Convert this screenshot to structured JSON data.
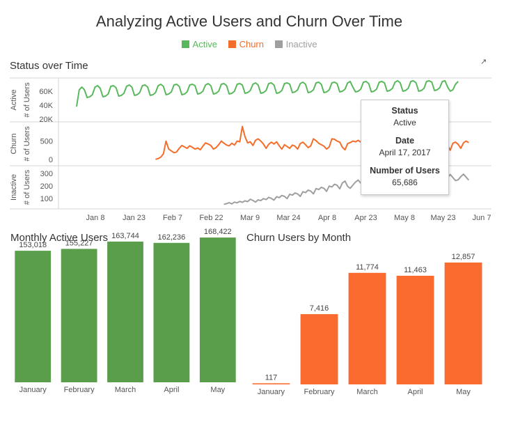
{
  "dashboard": {
    "title": "Analyzing Active Users and Churn Over Time",
    "legend": [
      {
        "label": "Active",
        "color": "#59b85c"
      },
      {
        "label": "Churn",
        "color": "#f46d2a"
      },
      {
        "label": "Inactive",
        "color": "#9da09e"
      }
    ],
    "popout_icon": "popout-icon"
  },
  "status_section": {
    "title": "Status over Time",
    "rows": [
      {
        "name": "Active",
        "axis_title": "# of Users",
        "ticks": [
          "60K",
          "40K",
          "20K"
        ]
      },
      {
        "name": "Churn",
        "axis_title": "# of Users",
        "ticks": [
          "500",
          "0"
        ]
      },
      {
        "name": "Inactive",
        "axis_title": "# of Users",
        "ticks": [
          "300",
          "200",
          "100"
        ]
      }
    ],
    "date_ticks": [
      "Jan 8",
      "Jan 23",
      "Feb 7",
      "Feb 22",
      "Mar 9",
      "Mar 24",
      "Apr 8",
      "Apr 23",
      "May 8",
      "May 23",
      "Jun 7"
    ]
  },
  "tooltip": {
    "status_label": "Status",
    "status_value": "Active",
    "date_label": "Date",
    "date_value": "April 17, 2017",
    "users_label": "Number of Users",
    "users_value": "65,686"
  },
  "monthly_active": {
    "title": "Monthly Active Users"
  },
  "churn_by_month": {
    "title": "Churn Users by Month"
  },
  "chart_data": [
    {
      "type": "line",
      "series_name": "Active",
      "start_date": "2017-01-01",
      "ylim": [
        20000,
        75000
      ],
      "values": [
        38000,
        62000,
        66000,
        62000,
        51000,
        52000,
        55000,
        66000,
        68000,
        64000,
        52000,
        53000,
        56000,
        67000,
        68000,
        65000,
        53000,
        54000,
        57000,
        67000,
        69000,
        66000,
        54000,
        55000,
        58000,
        68000,
        69000,
        66000,
        54000,
        55000,
        58000,
        68000,
        70000,
        67000,
        55000,
        56000,
        59000,
        69000,
        70000,
        67000,
        55000,
        56000,
        59000,
        69000,
        70000,
        68000,
        56000,
        57000,
        60000,
        69000,
        71000,
        68000,
        56000,
        57000,
        60000,
        70000,
        71000,
        68000,
        56000,
        57000,
        60000,
        70000,
        71000,
        69000,
        57000,
        58000,
        61000,
        70000,
        72000,
        69000,
        57000,
        58000,
        61000,
        71000,
        72000,
        69000,
        57000,
        58000,
        61000,
        71000,
        72000,
        70000,
        58000,
        59000,
        62000,
        71000,
        73000,
        70000,
        58000,
        59000,
        62000,
        72000,
        73000,
        70000,
        58000,
        59000,
        62000,
        72000,
        73000,
        71000,
        59000,
        60000,
        63000,
        72000,
        74000,
        65686,
        59000,
        60000,
        63000,
        73000,
        74000,
        71000,
        59000,
        60000,
        63000,
        73000,
        74000,
        72000,
        60000,
        61000,
        64000,
        73000,
        75000,
        72000,
        60000,
        61000,
        64000,
        74000,
        75000,
        72000,
        60000,
        61000,
        64000,
        74000,
        75000,
        73000,
        61000,
        62000,
        65000,
        74000,
        75000,
        66000,
        60000,
        62000,
        70000,
        74000
      ]
    },
    {
      "type": "line",
      "series_name": "Churn",
      "start_date": "2017-01-31",
      "ylim": [
        -100,
        950
      ],
      "values": [
        0,
        20,
        60,
        150,
        500,
        280,
        230,
        180,
        200,
        300,
        380,
        340,
        300,
        370,
        330,
        280,
        310,
        260,
        360,
        450,
        420,
        380,
        280,
        320,
        400,
        500,
        440,
        390,
        370,
        440,
        390,
        500,
        480,
        900,
        620,
        450,
        480,
        380,
        520,
        560,
        500,
        420,
        300,
        410,
        470,
        420,
        480,
        370,
        280,
        400,
        350,
        300,
        390,
        360,
        280,
        430,
        470,
        400,
        320,
        370,
        560,
        510,
        440,
        400,
        360,
        280,
        340,
        560,
        550,
        500,
        470,
        330,
        260,
        430,
        460,
        500,
        480,
        520,
        470,
        510,
        550,
        520,
        380,
        300,
        520,
        540,
        490,
        450,
        400,
        540,
        560,
        510,
        450,
        320,
        300,
        490,
        510,
        480,
        440,
        410,
        480,
        520,
        470,
        400,
        450,
        480,
        430,
        500,
        470,
        520,
        480,
        380,
        250,
        440,
        470,
        410,
        300,
        450,
        500,
        460,
        540,
        530,
        480,
        420,
        350,
        500,
        360,
        330,
        490,
        510,
        460,
        390,
        350,
        520,
        500,
        480,
        530,
        420,
        500,
        560,
        600,
        570
      ]
    },
    {
      "type": "line",
      "series_name": "Inactive",
      "start_date": "2017-02-26",
      "ylim": [
        40,
        340
      ],
      "values": [
        55,
        60,
        68,
        58,
        72,
        66,
        78,
        70,
        82,
        76,
        95,
        85,
        72,
        90,
        84,
        100,
        92,
        110,
        102,
        88,
        115,
        108,
        125,
        118,
        100,
        135,
        128,
        145,
        138,
        118,
        155,
        148,
        168,
        160,
        138,
        180,
        172,
        190,
        182,
        158,
        200,
        192,
        215,
        206,
        178,
        225,
        240,
        198,
        182,
        208,
        232,
        248,
        224,
        208,
        228,
        252,
        266,
        238,
        218,
        238,
        258,
        272,
        246,
        226,
        238,
        258,
        278,
        252,
        232,
        242,
        262,
        280,
        256,
        236,
        240,
        260,
        282,
        258,
        238,
        242,
        266,
        286,
        262,
        240,
        248,
        270,
        292,
        268,
        244,
        250,
        275,
        295,
        272,
        248,
        252,
        278,
        298,
        276,
        252,
        255,
        280,
        302,
        278,
        252,
        255,
        280,
        300,
        276,
        252,
        255,
        282,
        306,
        280,
        254,
        258,
        284,
        310,
        282,
        256,
        258,
        285,
        308,
        330,
        280,
        256,
        238,
        262,
        290,
        310,
        320,
        215,
        225,
        300,
        330,
        310,
        250
      ]
    },
    {
      "type": "bar",
      "title": "Monthly Active Users",
      "categories": [
        "January",
        "February",
        "March",
        "April",
        "May"
      ],
      "values": [
        153018,
        155227,
        163744,
        162236,
        168422
      ],
      "labels": [
        "153,018",
        "155,227",
        "163,744",
        "162,236",
        "168,422"
      ],
      "color": "#5a9e4b"
    },
    {
      "type": "bar",
      "title": "Churn Users by Month",
      "categories": [
        "January",
        "February",
        "March",
        "April",
        "May"
      ],
      "values": [
        117,
        7416,
        11774,
        11463,
        12857
      ],
      "labels": [
        "117",
        "7,416",
        "11,774",
        "11,463",
        "12,857"
      ],
      "color": "#f96b2f"
    }
  ]
}
